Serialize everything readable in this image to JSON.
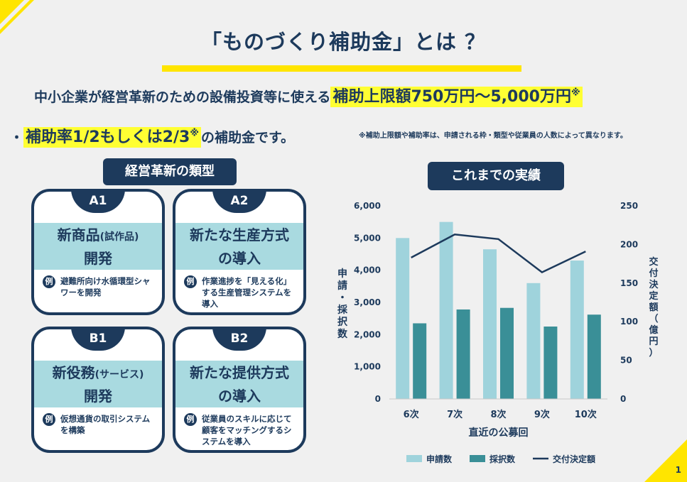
{
  "title": "「ものづくり補助金」とは ？",
  "intro": {
    "lead": "中小企業が経営革新のための設備投資等に使える",
    "limit": "補助上限額750万円〜5,000万円",
    "mark": "※",
    "bullet": "・",
    "rate": "補助率1/2もしくは2/3",
    "rate_tail": "の補助金です。",
    "note": "※補助上限額や補助率は、申請される枠・類型や従業員の人数によって異なります。"
  },
  "types": {
    "heading": "経営革新の類型",
    "cards": [
      {
        "tag": "A1",
        "title": "新商品",
        "title_small": "(試作品)",
        "title2": "開発",
        "example_mark": "例",
        "example": "避難所向け水循環型シャワーを開発"
      },
      {
        "tag": "A2",
        "title": "新たな生産方式",
        "title_small": "",
        "title2": "の導入",
        "example_mark": "例",
        "example": "作業進捗を「見える化」する生産管理システムを導入"
      },
      {
        "tag": "B1",
        "title": "新役務",
        "title_small": "(サービス)",
        "title2": "開発",
        "example_mark": "例",
        "example": "仮想通貨の取引システムを構築"
      },
      {
        "tag": "B2",
        "title": "新たな提供方式",
        "title_small": "",
        "title2": "の導入",
        "example_mark": "例",
        "example": "従業員のスキルに応じて顧客をマッチングするシステムを導入"
      }
    ]
  },
  "results": {
    "heading": "これまでの実績"
  },
  "chart_data": {
    "type": "bar",
    "categories": [
      "6次",
      "7次",
      "8次",
      "9次",
      "10次"
    ],
    "series": [
      {
        "name": "申請数",
        "kind": "bar",
        "axis": "left",
        "color": "#9fd3dc",
        "values": [
          5000,
          5500,
          4650,
          3600,
          4300
        ]
      },
      {
        "name": "採択数",
        "kind": "bar",
        "axis": "left",
        "color": "#3a8f97",
        "values": [
          2350,
          2780,
          2830,
          2250,
          2620
        ]
      },
      {
        "name": "交付決定額",
        "kind": "line",
        "axis": "right",
        "color": "#1d3a5c",
        "values": [
          183,
          213,
          207,
          164,
          191
        ]
      }
    ],
    "xlabel": "直近の公募回",
    "ylabel": "申請・採択数",
    "y2label": "交付決定額（億円）",
    "ylim": [
      0,
      6000
    ],
    "y2lim": [
      0,
      250
    ],
    "yticks": [
      "6,000",
      "5,000",
      "4,000",
      "3,000",
      "2,000",
      "1,000",
      "0"
    ],
    "y2ticks": [
      "250",
      "200",
      "150",
      "100",
      "50",
      "0"
    ],
    "legend_position": "bottom"
  },
  "page_number": "1",
  "colors": {
    "navy": "#1d3a5c",
    "yellow": "#ffe500",
    "highlight": "#ffff33",
    "light_teal": "#9fd3dc",
    "teal": "#3a8f97"
  }
}
